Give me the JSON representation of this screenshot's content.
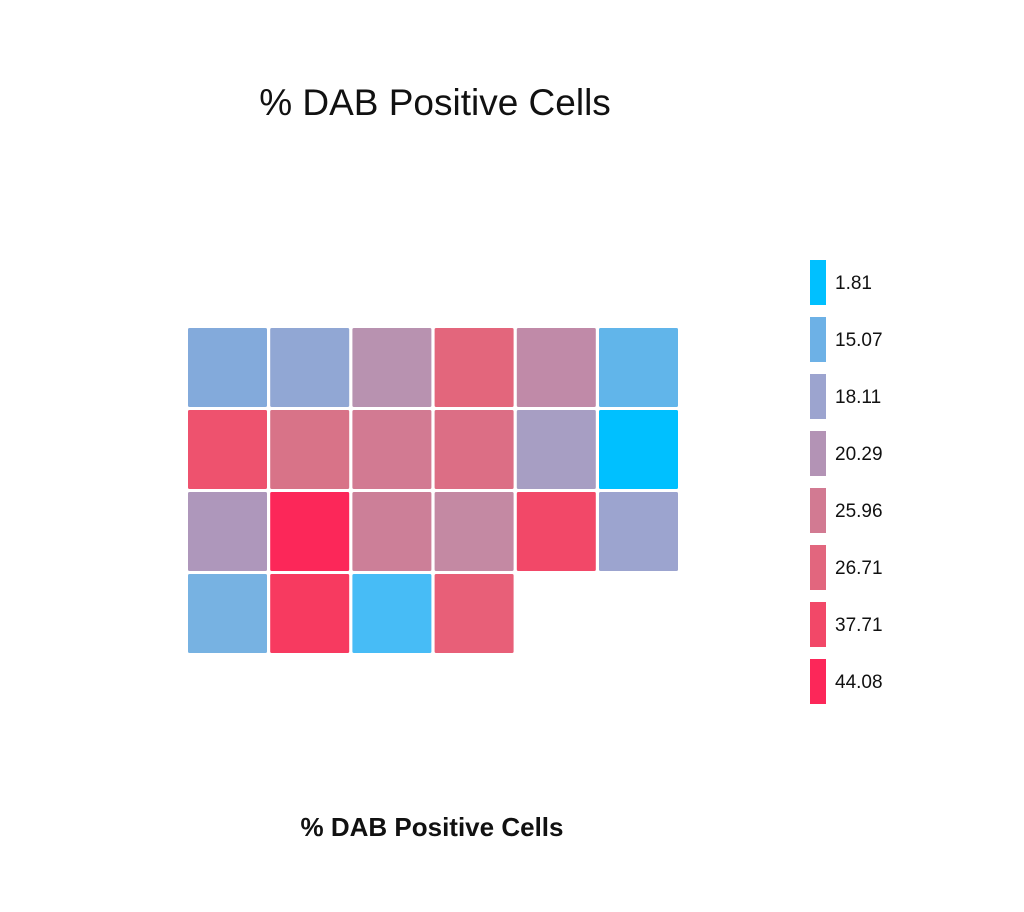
{
  "chart_data": {
    "type": "heatmap",
    "title": "% DAB Positive Cells",
    "subtitle": "% DAB Positive Cells",
    "columns": 6,
    "cells": [
      {
        "value": 14,
        "color": "#83aadb"
      },
      {
        "value": 17,
        "color": "#91a7d4"
      },
      {
        "value": 21,
        "color": "#b892b0"
      },
      {
        "value": 30,
        "color": "#e3667c"
      },
      {
        "value": 23,
        "color": "#c08aa8"
      },
      {
        "value": 8,
        "color": "#61b5ea"
      },
      {
        "value": 36,
        "color": "#ee526e"
      },
      {
        "value": 27,
        "color": "#d87388"
      },
      {
        "value": 26,
        "color": "#d27a92"
      },
      {
        "value": 28,
        "color": "#dc6e85"
      },
      {
        "value": 19,
        "color": "#a79ec3"
      },
      {
        "value": 1.81,
        "color": "#00c0ff"
      },
      {
        "value": 20,
        "color": "#ae97bb"
      },
      {
        "value": 44.08,
        "color": "#fc2759"
      },
      {
        "value": 25,
        "color": "#cc7f98"
      },
      {
        "value": 24,
        "color": "#c489a3"
      },
      {
        "value": 38,
        "color": "#f24868"
      },
      {
        "value": 18,
        "color": "#9ca4cf"
      },
      {
        "value": 12,
        "color": "#77b2e2"
      },
      {
        "value": 40,
        "color": "#f73a60"
      },
      {
        "value": 5,
        "color": "#47bcf6"
      },
      {
        "value": 31,
        "color": "#e85f78"
      }
    ],
    "legend": {
      "placement": "right",
      "items": [
        {
          "label": "1.81",
          "color": "#00c0ff"
        },
        {
          "label": "15.07",
          "color": "#6db1e6"
        },
        {
          "label": "18.11",
          "color": "#9ca4cf"
        },
        {
          "label": "20.29",
          "color": "#b393b5"
        },
        {
          "label": "25.96",
          "color": "#d27a92"
        },
        {
          "label": "26.71",
          "color": "#e2667e"
        },
        {
          "label": "37.71",
          "color": "#f24868"
        },
        {
          "label": "44.08",
          "color": "#fc2759"
        }
      ]
    }
  }
}
